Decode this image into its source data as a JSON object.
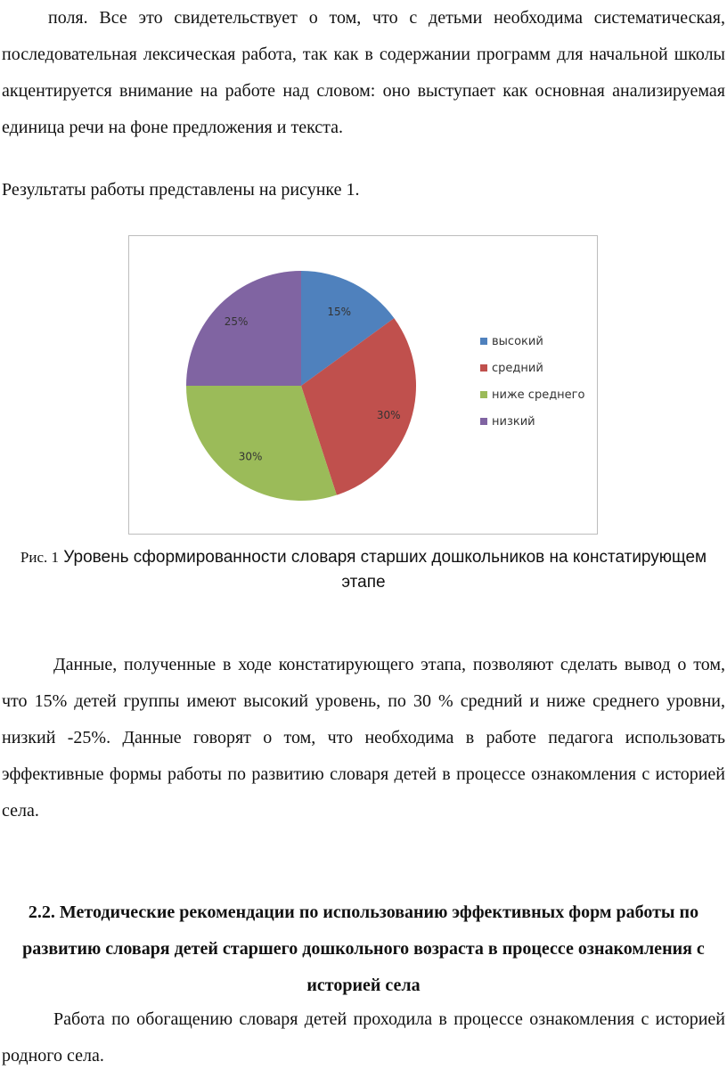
{
  "paragraphs": {
    "p1": "поля. Все это свидетельствует о том, что с детьми необходима систематическая, последовательная лексическая работа, так как в содержании программ для начальной школы акцентируется внимание на работе над словом: оно выступает как основная анализируемая единица речи на фоне предложения и текста.",
    "p2": "Результаты работы представлены на рисунке 1.",
    "p3": "Данные, полученные в ходе констатирующего этапа, позволяют сделать вывод о том, что 15% детей группы имеют высокий уровень, по 30 % средний и ниже среднего уровни, низкий -25%. Данные говорят о том, что  необходима в работе педагога использовать эффективные формы работы по развитию словаря детей в процессе ознакомления с историей села.",
    "p4": "Работа по обогащению словаря детей проходила в процессе ознакомления с историей родного села."
  },
  "figure": {
    "caption_prefix": "Рис. 1",
    "caption_text": "Уровень сформированности словаря старших дошкольников на констатирующем этапе"
  },
  "section_heading": "2.2. Методические рекомендации по использованию эффективных форм работы по развитию словаря детей старшего дошкольного возраста в процессе ознакомления с историей села",
  "chart_data": {
    "type": "pie",
    "categories": [
      "высокий",
      "средний",
      "ниже среднего",
      "низкий"
    ],
    "values": [
      15,
      30,
      30,
      25
    ],
    "data_labels": [
      "15%",
      "30%",
      "30%",
      "25%"
    ],
    "colors": [
      "#4f81bd",
      "#c0504d",
      "#9bbb59",
      "#8064a2"
    ],
    "legend_position": "right",
    "start_angle": "top, clockwise"
  }
}
